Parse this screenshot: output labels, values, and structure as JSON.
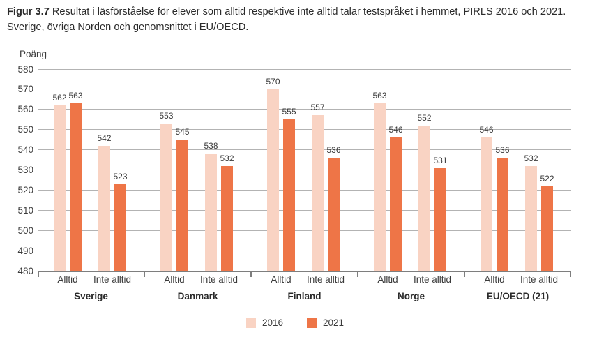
{
  "figure": {
    "title_label": "Figur 3.7",
    "title_text": "Resultat i läsförståelse för elever som alltid respektive inte alltid talar testspråket i hemmet, PIRLS 2016 och 2021. Sverige, övriga Norden och genomsnittet i EU/OECD."
  },
  "chart_data": {
    "type": "bar",
    "ylabel": "Poäng",
    "ylim": [
      480,
      580
    ],
    "ytick_step": 10,
    "grid": true,
    "legend_position": "bottom",
    "series": [
      {
        "name": "2016",
        "color": "#f9d3c3"
      },
      {
        "name": "2021",
        "color": "#ee7547"
      }
    ],
    "groups": [
      {
        "country": "Sverige",
        "bars": [
          {
            "label": "Alltid",
            "values": [
              562,
              563
            ]
          },
          {
            "label": "Inte alltid",
            "values": [
              542,
              523
            ]
          }
        ]
      },
      {
        "country": "Danmark",
        "bars": [
          {
            "label": "Alltid",
            "values": [
              553,
              545
            ]
          },
          {
            "label": "Inte alltid",
            "values": [
              538,
              532
            ]
          }
        ]
      },
      {
        "country": "Finland",
        "bars": [
          {
            "label": "Alltid",
            "values": [
              570,
              555
            ]
          },
          {
            "label": "Inte alltid",
            "values": [
              557,
              536
            ]
          }
        ]
      },
      {
        "country": "Norge",
        "bars": [
          {
            "label": "Alltid",
            "values": [
              563,
              546
            ]
          },
          {
            "label": "Inte alltid",
            "values": [
              552,
              531
            ]
          }
        ]
      },
      {
        "country": "EU/OECD (21)",
        "bars": [
          {
            "label": "Alltid",
            "values": [
              546,
              536
            ]
          },
          {
            "label": "Inte alltid",
            "values": [
              532,
              522
            ]
          }
        ]
      }
    ]
  }
}
